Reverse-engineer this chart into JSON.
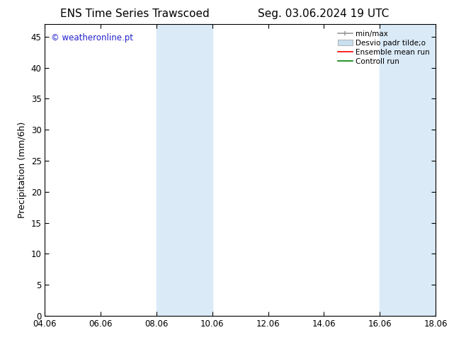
{
  "title_left": "ENS Time Series Trawscoed",
  "title_right": "Seg. 03.06.2024 19 UTC",
  "ylabel": "Precipitation (mm/6h)",
  "xlim": [
    4.06,
    18.06
  ],
  "ylim": [
    0,
    47
  ],
  "yticks": [
    0,
    5,
    10,
    15,
    20,
    25,
    30,
    35,
    40,
    45
  ],
  "xticks": [
    4.06,
    6.06,
    8.06,
    10.06,
    12.06,
    14.06,
    16.06,
    18.06
  ],
  "xticklabels": [
    "04.06",
    "06.06",
    "08.06",
    "10.06",
    "12.06",
    "14.06",
    "16.06",
    "18.06"
  ],
  "background_color": "#ffffff",
  "plot_bg_color": "#ffffff",
  "shaded_bands": [
    {
      "xmin": 8.06,
      "xmax": 10.06,
      "color": "#daeaf7"
    },
    {
      "xmin": 16.06,
      "xmax": 18.06,
      "color": "#daeaf7"
    }
  ],
  "legend_labels": [
    "min/max",
    "Desvio padr tilde;o",
    "Ensemble mean run",
    "Controll run"
  ],
  "legend_colors": [
    "#999999",
    "#c8dff0",
    "#ff0000",
    "#008000"
  ],
  "watermark_text": "© weatheronline.pt",
  "watermark_color": "#2222cc",
  "title_fontsize": 11,
  "tick_fontsize": 8.5,
  "ylabel_fontsize": 9,
  "legend_fontsize": 7.5
}
